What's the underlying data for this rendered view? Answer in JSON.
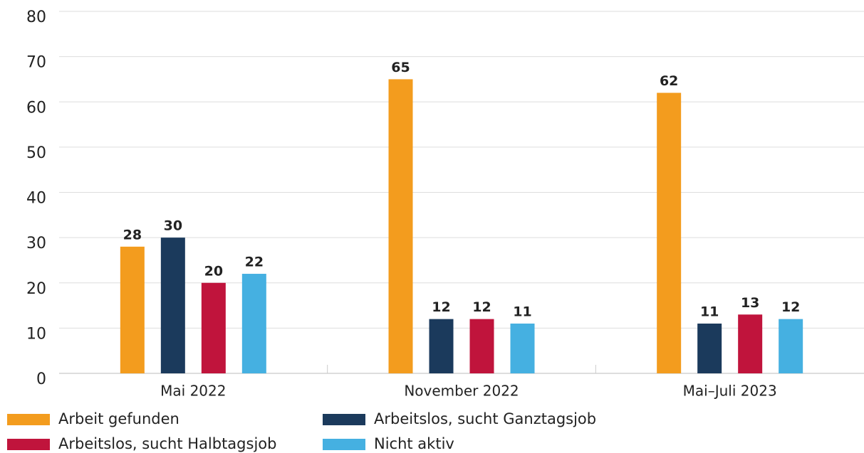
{
  "chart_data": {
    "type": "bar",
    "categories": [
      "Mai 2022",
      "November 2022",
      "Mai–Juli 2023"
    ],
    "series": [
      {
        "name": "Arbeit gefunden",
        "color": "#f39c1e",
        "values": [
          28,
          65,
          62
        ]
      },
      {
        "name": "Arbeitslos, sucht Ganztagsjob",
        "color": "#1b3a5c",
        "values": [
          30,
          12,
          11
        ]
      },
      {
        "name": "Arbeitslos, sucht Halbtagsjob",
        "color": "#c0143c",
        "values": [
          20,
          12,
          13
        ]
      },
      {
        "name": "Nicht aktiv",
        "color": "#45b0e1",
        "values": [
          22,
          11,
          12
        ]
      }
    ],
    "ylim": [
      0,
      80
    ],
    "yticks": [
      0,
      10,
      20,
      30,
      40,
      50,
      60,
      70,
      80
    ],
    "grid": true
  }
}
